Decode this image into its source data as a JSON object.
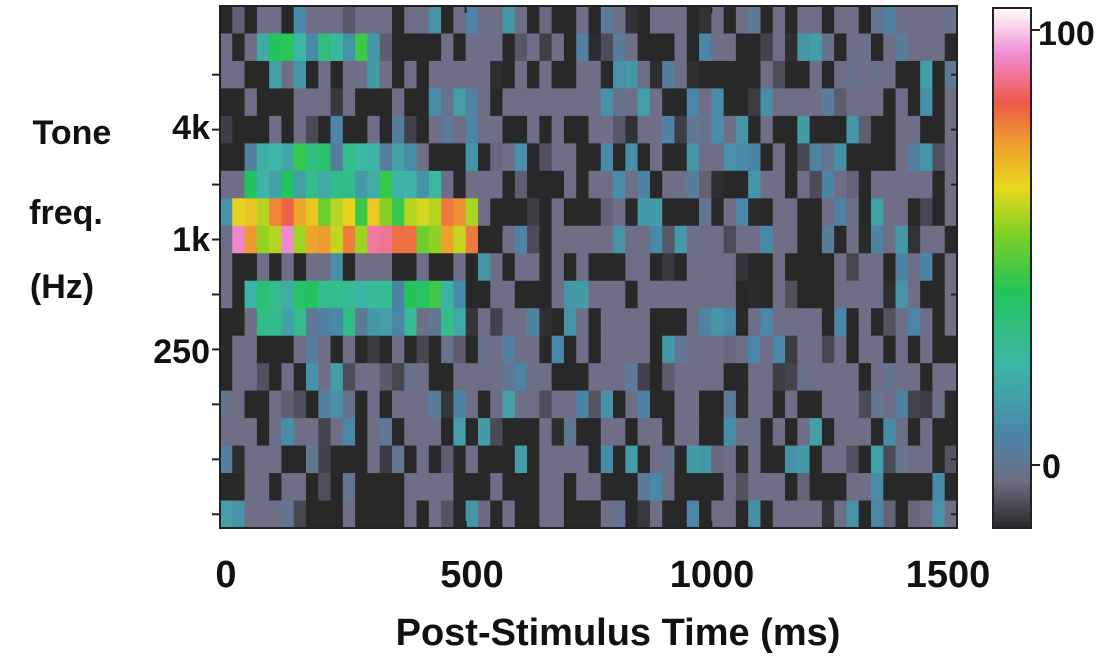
{
  "chart_data": {
    "type": "heatmap",
    "title": "",
    "xlabel": "Post-Stimulus Time (ms)",
    "ylabel_lines": [
      "Tone",
      "freq.",
      "(Hz)"
    ],
    "xlim": [
      0,
      1500
    ],
    "x_ticks": [
      {
        "value": 0,
        "label": "0"
      },
      {
        "value": 500,
        "label": "500"
      },
      {
        "value": 1000,
        "label": "1000"
      },
      {
        "value": 1500,
        "label": "1500"
      }
    ],
    "y_ticks": [
      {
        "row": 4,
        "label": "4k"
      },
      {
        "row": 8,
        "label": "1k"
      },
      {
        "row": 12,
        "label": "250"
      }
    ],
    "y_tick_rows": [
      2,
      4,
      6,
      8,
      10,
      12,
      14,
      16,
      18
    ],
    "grid": false,
    "n_rows": 19,
    "n_time_bins": 60,
    "bin_ms": 25,
    "colorbar": {
      "range": [
        -10,
        100
      ],
      "tick_labels": [
        {
          "value": 100,
          "label": "100"
        },
        {
          "value": 0,
          "label": "0"
        }
      ],
      "stops": [
        {
          "v": -10,
          "color": "#282828"
        },
        {
          "v": 0,
          "color": "#6e6e86"
        },
        {
          "v": 10,
          "color": "#4a86a8"
        },
        {
          "v": 25,
          "color": "#3cb8a6"
        },
        {
          "v": 40,
          "color": "#22c45a"
        },
        {
          "v": 52,
          "color": "#7cd024"
        },
        {
          "v": 62,
          "color": "#e8d81e"
        },
        {
          "v": 72,
          "color": "#ee9a30"
        },
        {
          "v": 80,
          "color": "#ee5a4a"
        },
        {
          "v": 90,
          "color": "#f08ad0"
        },
        {
          "v": 100,
          "color": "#ffffff"
        }
      ]
    },
    "response_regions": [
      {
        "row": 1,
        "t_start": 75,
        "t_end": 300,
        "level": 28
      },
      {
        "row": 5,
        "t_start": 50,
        "t_end": 400,
        "level": 24
      },
      {
        "row": 6,
        "t_start": 50,
        "t_end": 450,
        "level": 28
      },
      {
        "row": 7,
        "t_start": 25,
        "t_end": 525,
        "level": 60
      },
      {
        "row": 8,
        "t_start": 25,
        "t_end": 525,
        "level": 70
      },
      {
        "row": 10,
        "t_start": 50,
        "t_end": 500,
        "level": 28
      },
      {
        "row": 11,
        "t_start": 50,
        "t_end": 500,
        "level": 14
      }
    ],
    "spontaneous_level": [
      -10,
      18
    ]
  }
}
